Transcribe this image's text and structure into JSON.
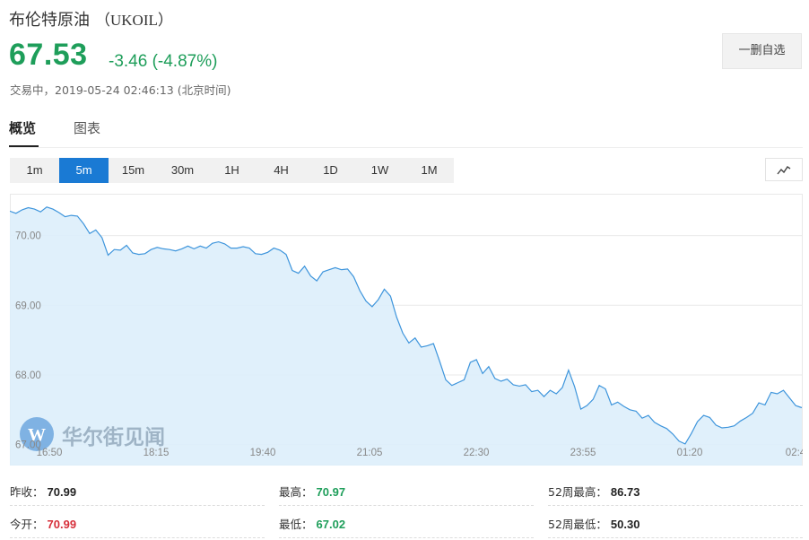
{
  "header": {
    "name": "布伦特原油",
    "code": "（UKOIL）",
    "price": "67.53",
    "change": "-3.46 (-4.87%)",
    "status": "交易中，2019-05-24 02:46:13 (北京时间)",
    "watch_label": "一删自选"
  },
  "tabs": [
    {
      "label": "概览",
      "active": true
    },
    {
      "label": "图表",
      "active": false
    }
  ],
  "periods": [
    "1m",
    "5m",
    "15m",
    "30m",
    "1H",
    "4H",
    "1D",
    "1W",
    "1M"
  ],
  "active_period": "5m",
  "chart_type_icon": "line-chart-icon",
  "watermark": "华尔街见闻",
  "colors": {
    "up": "#d62f3a",
    "down": "#1e9e5a",
    "accent": "#1a7ad4",
    "area": "#ddeefb",
    "line": "#3e95dc"
  },
  "chart_data": {
    "type": "area",
    "x_tick_labels": [
      "16:50",
      "18:15",
      "19:40",
      "21:05",
      "22:30",
      "23:55",
      "01:20",
      "02:4"
    ],
    "y_tick_labels": [
      "70.00",
      "69.00",
      "68.00",
      "67.00"
    ],
    "ylim": [
      66.7,
      70.6
    ],
    "grid": true,
    "series": [
      {
        "values": [
          70.35,
          70.32,
          70.37,
          70.4,
          70.38,
          70.34,
          70.41,
          70.38,
          70.33,
          70.27,
          70.29,
          70.28,
          70.17,
          70.03,
          70.08,
          69.97,
          69.72,
          69.8,
          69.79,
          69.86,
          69.75,
          69.73,
          69.74,
          69.8,
          69.83,
          69.81,
          69.8,
          69.78,
          69.81,
          69.85,
          69.81,
          69.85,
          69.82,
          69.89,
          69.91,
          69.88,
          69.82,
          69.82,
          69.84,
          69.82,
          69.74,
          69.73,
          69.76,
          69.82,
          69.79,
          69.73,
          69.5,
          69.46,
          69.56,
          69.42,
          69.35,
          69.48,
          69.51,
          69.54,
          69.51,
          69.52,
          69.41,
          69.21,
          69.06,
          68.98,
          69.08,
          69.23,
          69.13,
          68.83,
          68.6,
          68.46,
          68.53,
          68.4,
          68.42,
          68.45,
          68.2,
          67.93,
          67.85,
          67.89,
          67.93,
          68.18,
          68.22,
          68.02,
          68.12,
          67.95,
          67.91,
          67.94,
          67.86,
          67.84,
          67.86,
          67.76,
          67.78,
          67.69,
          67.78,
          67.73,
          67.82,
          68.07,
          67.83,
          67.51,
          67.56,
          67.65,
          67.85,
          67.8,
          67.57,
          67.61,
          67.55,
          67.5,
          67.48,
          67.38,
          67.42,
          67.32,
          67.27,
          67.23,
          67.15,
          67.05,
          67.01,
          67.16,
          67.33,
          67.42,
          67.39,
          67.28,
          67.24,
          67.25,
          67.27,
          67.34,
          67.39,
          67.45,
          67.6,
          67.57,
          67.75,
          67.73,
          67.78,
          67.67,
          67.56,
          67.53
        ]
      }
    ]
  },
  "stats": [
    [
      {
        "label": "昨收：",
        "value": "70.99",
        "color": "dark"
      },
      {
        "label": "最高：",
        "value": "70.97",
        "color": "green"
      },
      {
        "label": "52周最高：",
        "value": "86.73",
        "color": "dark"
      }
    ],
    [
      {
        "label": "今开：",
        "value": "70.99",
        "color": "red"
      },
      {
        "label": "最低：",
        "value": "67.02",
        "color": "green"
      },
      {
        "label": "52周最低：",
        "value": "50.30",
        "color": "dark"
      }
    ]
  ]
}
